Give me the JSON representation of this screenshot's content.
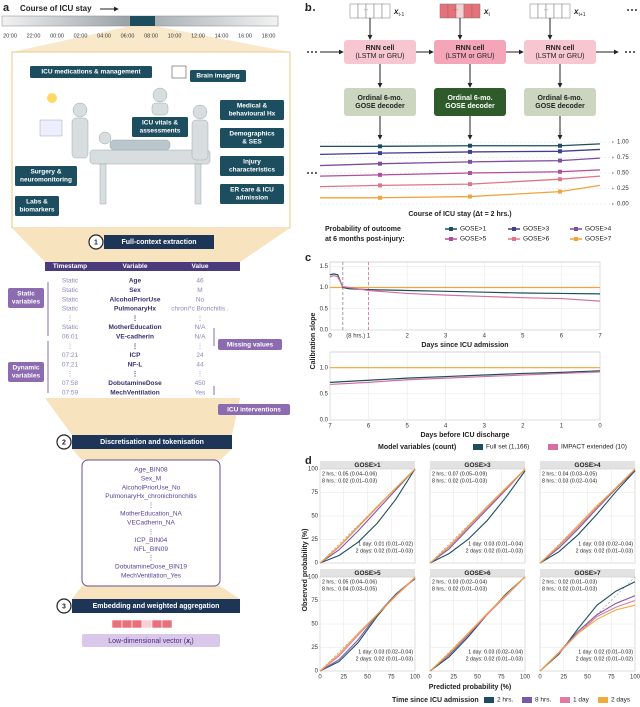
{
  "panel_a": {
    "label": "a",
    "timeline_title": "Course of ICU stay",
    "times": [
      "20:00",
      "22:00",
      "00:00",
      "02:00",
      "04:00",
      "06:00",
      "08:00",
      "10:00",
      "12:00",
      "14:00",
      "16:00",
      "18:00"
    ],
    "data_categories": [
      [
        "ICU medications & management"
      ],
      [
        "Brain imaging"
      ],
      [
        "Medical &",
        "behavioural Hx"
      ],
      [
        "ICU vitals &",
        "assessments"
      ],
      [
        "Demographics",
        "& SES"
      ],
      [
        "Injury",
        "characteristics"
      ],
      [
        "Surgery &",
        "neuromonitoring"
      ],
      [
        "Labs &",
        "biomarkers"
      ],
      [
        "ER care & ICU",
        "admission"
      ]
    ],
    "steps": [
      {
        "number": 1,
        "label": "Full-context extraction"
      },
      {
        "number": 2,
        "label": "Discretisation and tokenisation"
      },
      {
        "number": 3,
        "label": "Embedding and weighted aggregation"
      }
    ],
    "table": {
      "headers": [
        "Timestamp",
        "Variable",
        "Value"
      ],
      "rows": [
        [
          "Static",
          "Age",
          "46"
        ],
        [
          "Static",
          "Sex",
          "M"
        ],
        [
          "Static",
          "AlcoholPriorUse",
          "No"
        ],
        [
          "Static",
          "PulmonaryHx",
          "chroni*c Bronchitis ."
        ],
        [
          "⋮",
          "⋮",
          "⋮"
        ],
        [
          "Static",
          "MotherEducation",
          "N/A"
        ],
        [
          "06:01",
          "VE-cadherin",
          "N/A"
        ],
        [
          "⋮",
          "⋮",
          "⋮"
        ],
        [
          "07:21",
          "ICP",
          "24"
        ],
        [
          "07:21",
          "NF-L",
          "44"
        ],
        [
          "⋮",
          "⋮",
          "⋮"
        ],
        [
          "07:58",
          "DobutamineDose",
          "450"
        ],
        [
          "07:59",
          "MechVentilation",
          "Yes"
        ]
      ]
    },
    "group_labels": [
      [
        "Static",
        "variables"
      ],
      [
        "Dynamic",
        "variables"
      ]
    ],
    "callouts": [
      "Missing values",
      "ICU interventions"
    ],
    "tokens": [
      "Age_BIN08",
      "Sex_M",
      "AlcoholPriorUse_No",
      "PulmonaryHx_chronicbronchitis",
      "⋮",
      "MotherEducation_NA",
      "VECadherin_NA",
      "⋮",
      "ICP_BIN04",
      "NFL_BIN09",
      "⋮",
      "DobutamineDose_BIN19",
      "MechVentilation_Yes"
    ],
    "vector_label": {
      "text": "Low-dimensional vector (",
      "var": "x",
      "sub": "t",
      "close": ")"
    }
  },
  "panel_b": {
    "label": "b",
    "input_token": "···",
    "inputs": [
      {
        "var": "x",
        "sub": "t-1"
      },
      {
        "var": "x",
        "sub": "t"
      },
      {
        "var": "x",
        "sub": "t+1"
      }
    ],
    "rnn": [
      "RNN cell",
      "(LSTM or GRU)"
    ],
    "decoder": [
      "Ordinal 6-mo.",
      "GOSE decoder"
    ],
    "chart": {
      "type": "line",
      "ylim": [
        0,
        1
      ],
      "yticks": [
        {
          "value": 0,
          "label": "0.00"
        },
        0.25,
        {
          "value": 0.5,
          "label": "0.50"
        },
        0.75,
        {
          "value": 1,
          "label": "1.00"
        }
      ],
      "xlabel": "Course of ICU stay (Δt = 2 hrs.)",
      "legend_title": [
        "Probability of outcome",
        "at 6 months post-injury:"
      ],
      "series": [
        {
          "name": "GOSE>1",
          "color": "#1d4e5f",
          "values": [
            0.93,
            0.93,
            0.94,
            0.94,
            0.97
          ]
        },
        {
          "name": "GOSE>3",
          "color": "#3f3f8f",
          "values": [
            0.8,
            0.82,
            0.84,
            0.85,
            0.88
          ]
        },
        {
          "name": "GOSE>4",
          "color": "#7d4fa0",
          "values": [
            0.62,
            0.65,
            0.68,
            0.7,
            0.74
          ]
        },
        {
          "name": "GOSE>5",
          "color": "#b04f9a",
          "values": [
            0.45,
            0.47,
            0.5,
            0.52,
            0.55
          ]
        },
        {
          "name": "GOSE>6",
          "color": "#e0758a",
          "values": [
            0.28,
            0.3,
            0.32,
            0.4,
            0.45
          ]
        },
        {
          "name": "GOSE>7",
          "color": "#f2a33a",
          "values": [
            0.1,
            0.1,
            0.12,
            0.2,
            0.3
          ]
        }
      ]
    }
  },
  "panel_c": {
    "label": "c",
    "ylabel": "Calibration slope",
    "legend_title": "Model variables (count)",
    "legend": [
      {
        "name": "Full set (1,166)",
        "color": "#1d4e5f"
      },
      {
        "name": "IMPACT extended (10)",
        "color": "#d66fa0"
      }
    ],
    "reference_color": "#f2a33a",
    "charts": [
      {
        "type": "line",
        "xlabel": "Days since ICU admission",
        "xlim": [
          0,
          7
        ],
        "xticks": [
          0,
          1,
          2,
          3,
          4,
          5,
          6,
          7
        ],
        "ylim": [
          0,
          1.6
        ],
        "yticks": [
          {
            "value": 0,
            "label": "0.0"
          },
          0.5,
          {
            "value": 1,
            "label": "1.0"
          },
          1.5
        ],
        "reference": 1,
        "vlines": [
          0.333,
          1
        ],
        "vline_label": "(8 hrs.)",
        "x": [
          0,
          0.1,
          0.2,
          0.333,
          0.5,
          1,
          2,
          3,
          4,
          5,
          6,
          7
        ],
        "series": [
          [
            1.3,
            1.32,
            1.3,
            1.0,
            0.97,
            0.95,
            0.93,
            0.91,
            0.89,
            0.87,
            0.86,
            0.85
          ],
          [
            1.25,
            1.28,
            1.25,
            1.02,
            1.0,
            0.93,
            0.86,
            0.82,
            0.79,
            0.76,
            0.74,
            0.68
          ]
        ]
      },
      {
        "type": "line",
        "xlabel": "Days before ICU discharge",
        "xlim": [
          7,
          0
        ],
        "xticks": [
          7,
          6,
          5,
          4,
          3,
          2,
          1,
          0
        ],
        "ylim": [
          0,
          1.3
        ],
        "yticks": [
          {
            "value": 0,
            "label": "0.0"
          },
          0.5,
          {
            "value": 1,
            "label": "1.0"
          }
        ],
        "reference": 1,
        "x": [
          7,
          6,
          5,
          4,
          3,
          2,
          1,
          0
        ],
        "series": [
          [
            0.72,
            0.76,
            0.8,
            0.83,
            0.86,
            0.89,
            0.91,
            0.94
          ],
          [
            0.68,
            0.72,
            0.77,
            0.8,
            0.83,
            0.86,
            0.89,
            0.92
          ]
        ]
      }
    ]
  },
  "panel_d": {
    "label": "d",
    "type": "line",
    "xlabel": "Predicted probability (%)",
    "ylabel": "Observed probability (%)",
    "xlim": [
      0,
      100
    ],
    "ylim": [
      0,
      100
    ],
    "xticks": [
      0,
      25,
      50,
      75,
      100
    ],
    "yticks": [
      0,
      25,
      50,
      75,
      100
    ],
    "legend_title": "Time since ICU admission",
    "legend": [
      {
        "name": "2 hrs.",
        "color": "#1d4e5f"
      },
      {
        "name": "8 hrs.",
        "color": "#7a5aa6"
      },
      {
        "name": "1 day",
        "color": "#e07aa0"
      },
      {
        "name": "2 days",
        "color": "#f4a93b"
      }
    ],
    "x": [
      0,
      20,
      40,
      60,
      80,
      100
    ],
    "plots": [
      {
        "title": "GOSE>1",
        "series": [
          [
            0,
            8,
            22,
            42,
            68,
            100
          ],
          [
            0,
            14,
            34,
            56,
            78,
            100
          ],
          [
            0,
            17,
            38,
            59,
            80,
            100
          ],
          [
            0,
            18,
            39,
            60,
            80,
            100
          ]
        ],
        "annotations": [
          "2 hrs.: 0.05 (0.04–0.06)",
          "8 hrs.: 0.02 (0.01–0.03)",
          "1 day: 0.01 (0.01–0.02)",
          "2 days: 0.02 (0.01–0.03)"
        ]
      },
      {
        "title": "GOSE>3",
        "series": [
          [
            0,
            10,
            25,
            45,
            70,
            98
          ],
          [
            0,
            15,
            36,
            57,
            78,
            100
          ],
          [
            0,
            17,
            38,
            59,
            79,
            100
          ],
          [
            0,
            18,
            39,
            60,
            80,
            100
          ]
        ],
        "annotations": [
          "2 hrs.: 0.07 (0.05–0.09)",
          "8 hrs.: 0.02 (0.01–0.03)",
          "1 day: 0.03 (0.01–0.04)",
          "2 days: 0.02 (0.01–0.03)"
        ]
      },
      {
        "title": "GOSE>4",
        "series": [
          [
            0,
            12,
            30,
            52,
            76,
            98
          ],
          [
            0,
            16,
            36,
            58,
            79,
            99
          ],
          [
            0,
            18,
            38,
            59,
            80,
            100
          ],
          [
            0,
            19,
            40,
            61,
            80,
            100
          ]
        ],
        "annotations": [
          "2 hrs.: 0.04 (0.03–0.05)",
          "8 hrs.: 0.03 (0.02–0.04)",
          "1 day: 0.03 (0.02–0.04)",
          "2 days: 0.02 (0.01–0.03)"
        ]
      },
      {
        "title": "GOSE>5",
        "series": [
          [
            0,
            10,
            30,
            58,
            82,
            98
          ],
          [
            0,
            12,
            33,
            60,
            82,
            99
          ],
          [
            0,
            16,
            38,
            60,
            80,
            99
          ],
          [
            0,
            18,
            40,
            60,
            80,
            100
          ]
        ],
        "annotations": [
          "2 hrs.: 0.05 (0.04–0.06)",
          "8 hrs.: 0.04 (0.03–0.05)",
          "1 day: 0.03 (0.02–0.04)",
          "2 days: 0.02 (0.01–0.03)"
        ]
      },
      {
        "title": "GOSE>6",
        "series": [
          [
            0,
            15,
            36,
            60,
            82,
            100
          ],
          [
            0,
            17,
            38,
            60,
            80,
            100
          ],
          [
            0,
            18,
            39,
            60,
            80,
            100
          ],
          [
            0,
            19,
            40,
            61,
            81,
            100
          ]
        ],
        "annotations": [
          "2 hrs.: 0.03 (0.02–0.04)",
          "8 hrs.: 0.02 (0.01–0.03)",
          "1 day: 0.03 (0.02–0.04)",
          "2 days: 0.02 (0.01–0.03)"
        ]
      },
      {
        "title": "GOSE>7",
        "series": [
          [
            0,
            18,
            45,
            70,
            85,
            95
          ],
          [
            0,
            20,
            42,
            60,
            72,
            80
          ],
          [
            0,
            19,
            40,
            58,
            68,
            75
          ],
          [
            0,
            20,
            40,
            55,
            65,
            70
          ]
        ],
        "annotations": [
          "2 hrs.: 0.02 (0.01–0.03)",
          "8 hrs.: 0.02 (0.01–0.03)",
          "1 day: 0.02 (0.01–0.03)",
          "2 days: 0.02 (0.01–0.02)"
        ]
      }
    ]
  }
}
